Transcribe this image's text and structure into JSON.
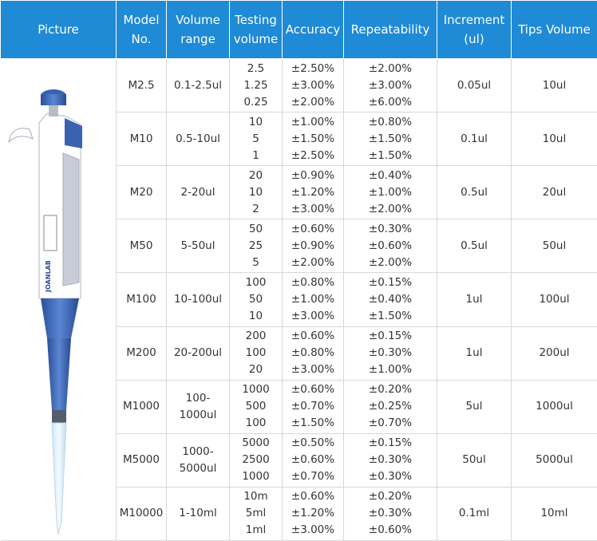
{
  "header": [
    "Picture",
    "Model No.",
    "Volume range",
    "Testing volume",
    "Accuracy",
    "Repeatability",
    "Increment (ul)",
    "Tips Volume"
  ],
  "picture": {
    "brand": "JOANLAB"
  },
  "rows": [
    {
      "model": "M2.5",
      "range": "0.1-2.5ul",
      "testing": [
        "2.5",
        "1.25",
        "0.25"
      ],
      "accuracy": [
        "±2.50%",
        "±3.00%",
        "±2.00%"
      ],
      "repeatability": [
        "±2.00%",
        "±3.00%",
        "±6.00%"
      ],
      "increment": "0.05ul",
      "tips": "10ul"
    },
    {
      "model": "M10",
      "range": "0.5-10ul",
      "testing": [
        "10",
        "5",
        "1"
      ],
      "accuracy": [
        "±1.00%",
        "±1.50%",
        "±2.50%"
      ],
      "repeatability": [
        "±0.80%",
        "±1.50%",
        "±1.50%"
      ],
      "increment": "0.1ul",
      "tips": "10ul"
    },
    {
      "model": "M20",
      "range": "2-20ul",
      "testing": [
        "20",
        "10",
        "2"
      ],
      "accuracy": [
        "±0.90%",
        "±1.20%",
        "±3.00%"
      ],
      "repeatability": [
        "±0.40%",
        "±1.00%",
        "±2.00%"
      ],
      "increment": "0.5ul",
      "tips": "20ul"
    },
    {
      "model": "M50",
      "range": "5-50ul",
      "testing": [
        "50",
        "25",
        "5"
      ],
      "accuracy": [
        "±0.60%",
        "±0.90%",
        "±2.00%"
      ],
      "repeatability": [
        "±0.30%",
        "±0.60%",
        "±2.00%"
      ],
      "increment": "0.5ul",
      "tips": "50ul"
    },
    {
      "model": "M100",
      "range": "10-100ul",
      "testing": [
        "100",
        "50",
        "10"
      ],
      "accuracy": [
        "±0.80%",
        "±1.00%",
        "±3.00%"
      ],
      "repeatability": [
        "±0.15%",
        "±0.40%",
        "±1.50%"
      ],
      "increment": "1ul",
      "tips": "100ul"
    },
    {
      "model": "M200",
      "range": "20-200ul",
      "testing": [
        "200",
        "100",
        "20"
      ],
      "accuracy": [
        "±0.60%",
        "±0.80%",
        "±3.00%"
      ],
      "repeatability": [
        "±0.15%",
        "±0.30%",
        "±1.00%"
      ],
      "increment": "1ul",
      "tips": "200ul"
    },
    {
      "model": "M1000",
      "range": "100-1000ul",
      "testing": [
        "1000",
        "500",
        "100"
      ],
      "accuracy": [
        "±0.60%",
        "±0.70%",
        "±1.50%"
      ],
      "repeatability": [
        "±0.20%",
        "±0.25%",
        "±0.70%"
      ],
      "increment": "5ul",
      "tips": "1000ul"
    },
    {
      "model": "M5000",
      "range": "1000-5000ul",
      "testing": [
        "5000",
        "2500",
        "1000"
      ],
      "accuracy": [
        "±0.50%",
        "±0.60%",
        "±0.70%"
      ],
      "repeatability": [
        "±0.15%",
        "±0.30%",
        "±0.30%"
      ],
      "increment": "50ul",
      "tips": "5000ul"
    },
    {
      "model": "M10000",
      "range": "1-10ml",
      "testing": [
        "10m",
        "5ml",
        "1ml"
      ],
      "accuracy": [
        "±0.60%",
        "±1.20%",
        "±3.00%"
      ],
      "repeatability": [
        "±0.20%",
        "±0.30%",
        "±0.60%"
      ],
      "increment": "0.1ml",
      "tips": "10ml"
    }
  ]
}
